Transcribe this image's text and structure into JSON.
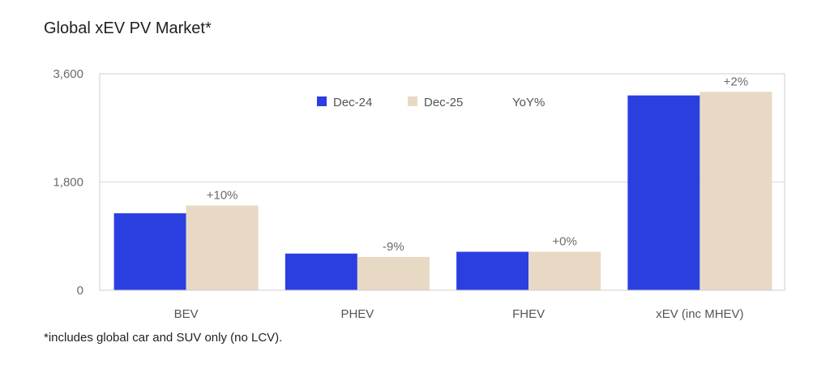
{
  "title": "Global xEV PV Market*",
  "footnote": "*includes global car and SUV only (no LCV).",
  "chart_data": {
    "type": "bar",
    "categories": [
      "BEV",
      "PHEV",
      "FHEV",
      "xEV (inc MHEV)"
    ],
    "series": [
      {
        "name": "Dec-24",
        "color": "#2b3fe0",
        "values": [
          1280,
          610,
          640,
          3240
        ]
      },
      {
        "name": "Dec-25",
        "color": "#e8d9c5",
        "values": [
          1410,
          555,
          640,
          3300
        ]
      }
    ],
    "yoy_label": "YoY%",
    "yoy": [
      "+10%",
      "-9%",
      "+0%",
      "+2%"
    ],
    "ylim": [
      0,
      3600
    ],
    "yticks": [
      0,
      1800,
      3600
    ],
    "ytick_labels": [
      "0",
      "1,800",
      "3,600"
    ],
    "grid": true,
    "legend_position": "top-center"
  }
}
